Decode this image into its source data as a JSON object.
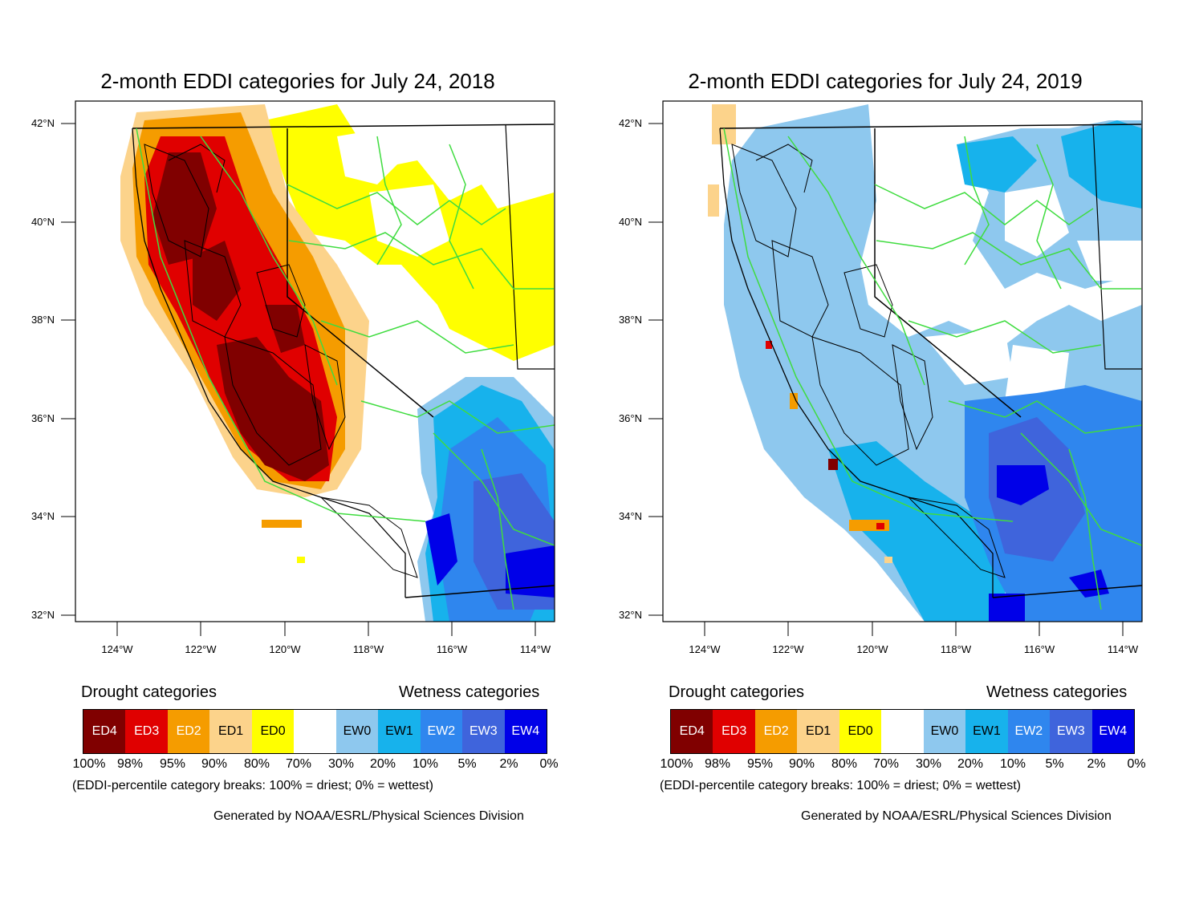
{
  "maps": [
    {
      "title": "2-month EDDI categories for July 24, 2018",
      "scenario": "drought"
    },
    {
      "title": "2-month EDDI categories for July 24, 2019",
      "scenario": "wet"
    }
  ],
  "latitude_labels": [
    "42°N",
    "40°N",
    "38°N",
    "36°N",
    "34°N",
    "32°N"
  ],
  "longitude_labels": [
    "124°W",
    "122°W",
    "120°W",
    "118°W",
    "116°W",
    "114°W"
  ],
  "legend": {
    "drought_heading": "Drought categories",
    "wetness_heading": "Wetness categories",
    "categories": [
      {
        "label": "ED4",
        "color": "#800000",
        "text_color": "#ffffff"
      },
      {
        "label": "ED3",
        "color": "#e00000",
        "text_color": "#ffffff"
      },
      {
        "label": "ED2",
        "color": "#f59c00",
        "text_color": "#ffffff"
      },
      {
        "label": "ED1",
        "color": "#fcd38b",
        "text_color": "#000000"
      },
      {
        "label": "ED0",
        "color": "#ffff00",
        "text_color": "#000000"
      },
      {
        "label": "",
        "color": "#ffffff",
        "text_color": "#000000"
      },
      {
        "label": "EW0",
        "color": "#8ec8ee",
        "text_color": "#000000"
      },
      {
        "label": "EW1",
        "color": "#17b2ec",
        "text_color": "#000000"
      },
      {
        "label": "EW2",
        "color": "#2f86ee",
        "text_color": "#ffffff"
      },
      {
        "label": "EW3",
        "color": "#3f64dc",
        "text_color": "#ffffff"
      },
      {
        "label": "EW4",
        "color": "#0000e8",
        "text_color": "#ffffff"
      }
    ],
    "breaks": [
      "100%",
      "98%",
      "95%",
      "90%",
      "80%",
      "70%",
      "30%",
      "20%",
      "10%",
      "5%",
      "2%",
      "0%"
    ]
  },
  "note": "(EDDI-percentile category breaks: 100% = driest; 0% = wettest)",
  "credit": "Generated by NOAA/ESRL/Physical Sciences Division"
}
